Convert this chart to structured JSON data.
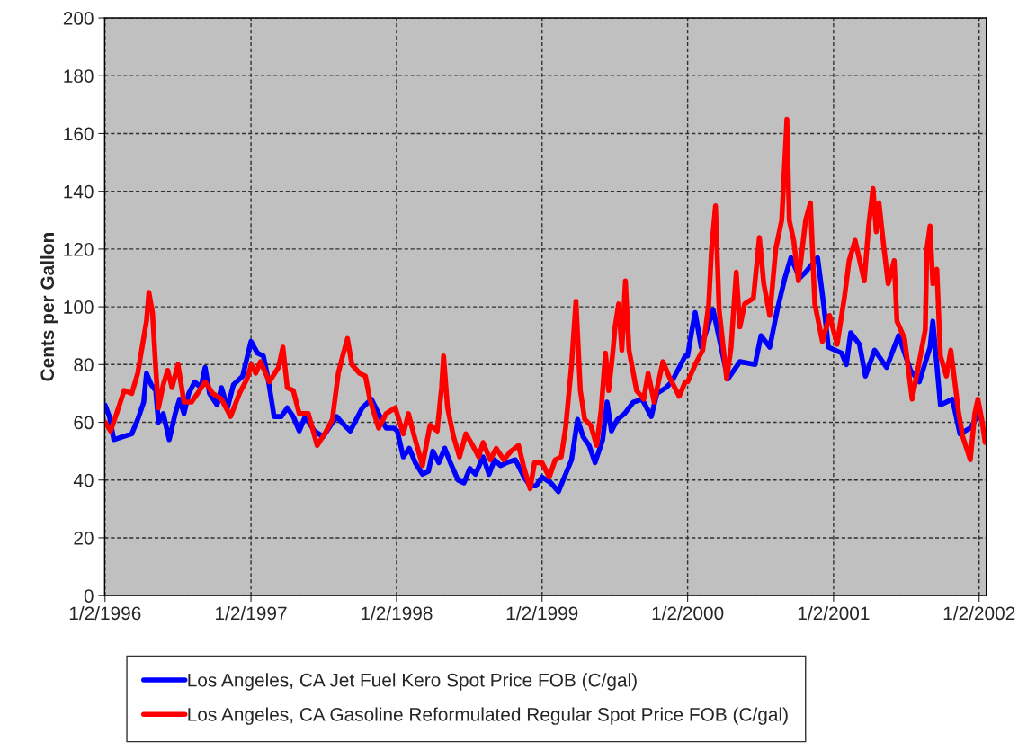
{
  "chart_data": {
    "type": "line",
    "ylabel": "Cents per Gallon",
    "xlim": [
      "1996-01-01",
      "2002-01-20"
    ],
    "xticks": [
      {
        "value": "1996-01-02",
        "label": "1/2/1996"
      },
      {
        "value": "1997-01-02",
        "label": "1/2/1997"
      },
      {
        "value": "1998-01-02",
        "label": "1/2/1998"
      },
      {
        "value": "1999-01-02",
        "label": "1/2/1999"
      },
      {
        "value": "2000-01-02",
        "label": "1/2/2000"
      },
      {
        "value": "2001-01-02",
        "label": "1/2/2001"
      },
      {
        "value": "2002-01-02",
        "label": "1/2/2002"
      }
    ],
    "ylim": [
      0,
      200
    ],
    "yticks": [
      0,
      20,
      40,
      60,
      80,
      100,
      120,
      140,
      160,
      180,
      200
    ],
    "grid": true,
    "legend": "bottom",
    "line_style": "solid",
    "marker": "none",
    "series": [
      {
        "name": "Los Angeles, CA Jet Fuel Kero Spot Price FOB (C/gal)",
        "color": "#0000ff",
        "x": [
          "1996-01-02",
          "1996-01-13",
          "1996-01-24",
          "1996-02-15",
          "1996-03-09",
          "1996-03-24",
          "1996-04-08",
          "1996-04-15",
          "1996-04-27",
          "1996-05-08",
          "1996-05-15",
          "1996-05-27",
          "1996-06-11",
          "1996-06-26",
          "1996-07-07",
          "1996-07-18",
          "1996-07-30",
          "1996-08-14",
          "1996-08-29",
          "1996-09-09",
          "1996-09-20",
          "1996-10-09",
          "1996-10-20",
          "1996-11-04",
          "1996-11-19",
          "1996-12-12",
          "1997-01-02",
          "1997-01-18",
          "1997-02-02",
          "1997-02-14",
          "1997-03-01",
          "1997-03-19",
          "1997-04-03",
          "1997-04-18",
          "1997-05-03",
          "1997-05-18",
          "1997-06-10",
          "1997-07-02",
          "1997-07-21",
          "1997-08-05",
          "1997-08-24",
          "1997-09-08",
          "1997-09-23",
          "1997-10-08",
          "1997-10-31",
          "1997-11-18",
          "1997-12-07",
          "1997-12-26",
          "1998-01-04",
          "1998-01-19",
          "1998-02-03",
          "1998-02-18",
          "1998-03-08",
          "1998-03-23",
          "1998-04-03",
          "1998-04-18",
          "1998-05-03",
          "1998-05-17",
          "1998-06-05",
          "1998-06-20",
          "1998-07-05",
          "1998-07-19",
          "1998-08-07",
          "1998-08-22",
          "1998-09-05",
          "1998-09-20",
          "1998-10-05",
          "1998-10-27",
          "1998-11-18",
          "1998-12-03",
          "1998-12-18",
          "1999-01-02",
          "1999-01-24",
          "1999-02-12",
          "1999-03-02",
          "1999-03-17",
          "1999-04-01",
          "1999-04-15",
          "1999-04-30",
          "1999-05-15",
          "1999-06-03",
          "1999-06-14",
          "1999-06-25",
          "1999-07-10",
          "1999-07-28",
          "1999-08-19",
          "1999-09-10",
          "1999-10-03",
          "1999-10-17",
          "1999-11-09",
          "1999-11-23",
          "1999-12-16",
          "1999-12-27",
          "2000-01-02",
          "2000-01-13",
          "2000-01-21",
          "2000-02-05",
          "2000-03-06",
          "2000-04-12",
          "2000-05-12",
          "2000-06-19",
          "2000-07-04",
          "2000-07-26",
          "2000-08-14",
          "2000-09-02",
          "2000-09-17",
          "2000-10-09",
          "2000-10-24",
          "2000-11-23",
          "2000-12-08",
          "2000-12-20",
          "2001-01-22",
          "2001-02-03",
          "2001-02-14",
          "2001-03-08",
          "2001-03-23",
          "2001-04-15",
          "2001-05-15",
          "2001-06-14",
          "2001-07-14",
          "2001-08-05",
          "2001-09-01",
          "2001-09-08",
          "2001-09-27",
          "2001-10-27",
          "2001-11-15",
          "2001-12-11",
          "2002-01-02"
        ],
        "values": [
          66,
          62,
          54,
          55,
          56,
          61,
          67,
          77,
          73,
          71,
          60,
          63,
          54,
          63,
          68,
          63,
          70,
          74,
          72,
          79,
          70,
          66,
          72,
          65,
          73,
          76,
          88,
          84,
          83,
          75,
          62,
          62,
          65,
          62,
          57,
          62,
          57,
          55,
          59,
          62,
          59,
          57,
          61,
          65,
          68,
          63,
          58,
          58,
          57,
          48,
          51,
          46,
          42,
          43,
          50,
          46,
          51,
          46,
          40,
          39,
          44,
          42,
          48,
          42,
          47,
          45,
          46,
          47,
          41,
          38,
          38,
          41,
          39,
          36,
          42,
          47,
          61,
          55,
          52,
          46,
          54,
          67,
          57,
          61,
          63,
          67,
          68,
          62,
          70,
          72,
          74,
          80,
          83,
          83,
          92,
          98,
          86,
          99,
          75,
          81,
          80,
          90,
          86,
          99,
          110,
          117,
          110,
          112,
          117,
          101,
          86,
          84,
          80,
          91,
          87,
          76,
          85,
          79,
          90,
          78,
          74,
          86,
          95,
          66,
          68,
          56,
          58,
          63
        ]
      },
      {
        "name": "Los Angeles, CA Gasoline Reformulated Regular Spot Price FOB (C/gal)",
        "color": "#ff0000",
        "x": [
          "1996-01-02",
          "1996-01-16",
          "1996-01-31",
          "1996-02-19",
          "1996-03-09",
          "1996-03-24",
          "1996-04-04",
          "1996-04-15",
          "1996-04-21",
          "1996-04-30",
          "1996-05-08",
          "1996-05-15",
          "1996-05-27",
          "1996-06-07",
          "1996-06-18",
          "1996-07-03",
          "1996-07-18",
          "1996-08-06",
          "1996-08-21",
          "1996-09-09",
          "1996-09-28",
          "1996-10-20",
          "1996-11-12",
          "1996-12-04",
          "1996-12-23",
          "1997-01-03",
          "1997-01-14",
          "1997-01-26",
          "1997-02-17",
          "1997-03-12",
          "1997-03-23",
          "1997-04-03",
          "1997-04-18",
          "1997-05-03",
          "1997-05-26",
          "1997-06-17",
          "1997-07-10",
          "1997-07-25",
          "1997-08-09",
          "1997-08-20",
          "1997-09-01",
          "1997-09-12",
          "1997-10-01",
          "1997-10-16",
          "1997-10-27",
          "1997-11-18",
          "1997-12-07",
          "1997-12-30",
          "1998-01-19",
          "1998-02-01",
          "1998-02-14",
          "1998-03-08",
          "1998-03-27",
          "1998-04-14",
          "1998-04-25",
          "1998-04-30",
          "1998-05-10",
          "1998-05-25",
          "1998-06-09",
          "1998-06-25",
          "1998-07-12",
          "1998-07-27",
          "1998-08-07",
          "1998-08-25",
          "1998-09-09",
          "1998-09-28",
          "1998-10-16",
          "1998-11-04",
          "1998-11-18",
          "1998-12-03",
          "1998-12-14",
          "1999-01-02",
          "1999-01-20",
          "1999-02-04",
          "1999-02-19",
          "1999-03-02",
          "1999-03-17",
          "1999-03-28",
          "1999-04-08",
          "1999-04-19",
          "1999-05-04",
          "1999-05-19",
          "1999-05-30",
          "1999-06-10",
          "1999-06-18",
          "1999-06-29",
          "1999-07-04",
          "1999-07-13",
          "1999-07-21",
          "1999-07-30",
          "1999-08-08",
          "1999-08-27",
          "1999-09-14",
          "1999-09-25",
          "1999-10-10",
          "1999-11-01",
          "1999-11-16",
          "1999-12-12",
          "1999-12-27",
          "2000-01-02",
          "2000-01-21",
          "2000-02-09",
          "2000-02-24",
          "2000-03-02",
          "2000-03-12",
          "2000-03-21",
          "2000-04-09",
          "2000-04-20",
          "2000-05-03",
          "2000-05-12",
          "2000-05-24",
          "2000-06-15",
          "2000-06-30",
          "2000-07-11",
          "2000-07-26",
          "2000-08-10",
          "2000-08-25",
          "2000-09-03",
          "2000-09-07",
          "2000-09-13",
          "2000-09-24",
          "2000-10-06",
          "2000-10-24",
          "2000-11-05",
          "2000-11-16",
          "2000-12-05",
          "2000-12-23",
          "2001-01-11",
          "2001-01-30",
          "2001-02-10",
          "2001-02-25",
          "2001-03-20",
          "2001-03-31",
          "2001-04-11",
          "2001-04-19",
          "2001-04-26",
          "2001-05-07",
          "2001-05-19",
          "2001-06-03",
          "2001-06-10",
          "2001-06-29",
          "2001-07-18",
          "2001-08-05",
          "2001-08-20",
          "2001-08-24",
          "2001-09-01",
          "2001-09-08",
          "2001-09-18",
          "2001-09-27",
          "2001-10-12",
          "2001-10-23",
          "2001-11-11",
          "2001-11-22",
          "2001-12-11",
          "2001-12-22",
          "2001-12-30",
          "2002-01-10",
          "2002-01-17"
        ],
        "values": [
          60,
          57,
          63,
          71,
          70,
          77,
          86,
          95,
          105,
          98,
          79,
          65,
          73,
          78,
          72,
          80,
          67,
          67,
          70,
          74,
          70,
          68,
          62,
          70,
          75,
          80,
          77,
          81,
          74,
          79,
          86,
          72,
          71,
          63,
          63,
          52,
          57,
          61,
          77,
          83,
          89,
          80,
          77,
          76,
          68,
          58,
          63,
          65,
          56,
          63,
          56,
          45,
          59,
          57,
          72,
          83,
          65,
          55,
          48,
          56,
          52,
          48,
          53,
          47,
          51,
          47,
          50,
          52,
          44,
          37,
          46,
          46,
          41,
          47,
          48,
          58,
          80,
          102,
          71,
          61,
          59,
          52,
          64,
          84,
          71,
          85,
          93,
          101,
          85,
          109,
          85,
          71,
          68,
          77,
          67,
          81,
          76,
          69,
          74,
          74,
          80,
          85,
          101,
          120,
          135,
          99,
          75,
          86,
          112,
          93,
          101,
          103,
          124,
          108,
          97,
          120,
          130,
          154,
          165,
          130,
          123,
          109,
          130,
          136,
          101,
          88,
          97,
          87,
          104,
          116,
          123,
          109,
          128,
          141,
          126,
          136,
          122,
          108,
          116,
          95,
          89,
          68,
          81,
          92,
          120,
          128,
          108,
          113,
          83,
          76,
          85,
          64,
          55,
          47,
          63,
          68,
          60,
          53
        ]
      }
    ]
  }
}
